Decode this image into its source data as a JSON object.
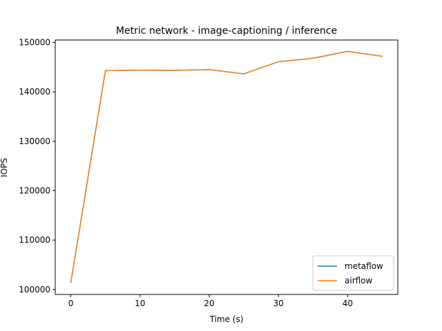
{
  "chart_data": {
    "type": "line",
    "title": "Metric network - image-captioning / inference",
    "xlabel": "Time (s)",
    "ylabel": "IOPS",
    "x": [
      0,
      5,
      10,
      15,
      20,
      25,
      30,
      35,
      40,
      45
    ],
    "xlim": [
      -2.25,
      47.25
    ],
    "ylim": [
      99000,
      150500
    ],
    "xticks": [
      0,
      10,
      20,
      30,
      40
    ],
    "yticks": [
      100000,
      110000,
      120000,
      130000,
      140000,
      150000
    ],
    "grid": false,
    "legend_position": "lower-right",
    "series": [
      {
        "name": "metaflow",
        "color": "#1f77b4",
        "values": [
          101400,
          144300,
          144400,
          144350,
          144500,
          143650,
          146100,
          146800,
          148200,
          147200
        ]
      },
      {
        "name": "airflow",
        "color": "#ff7f0e",
        "values": [
          101400,
          144300,
          144400,
          144350,
          144500,
          143650,
          146100,
          146800,
          148200,
          147200
        ]
      }
    ]
  }
}
